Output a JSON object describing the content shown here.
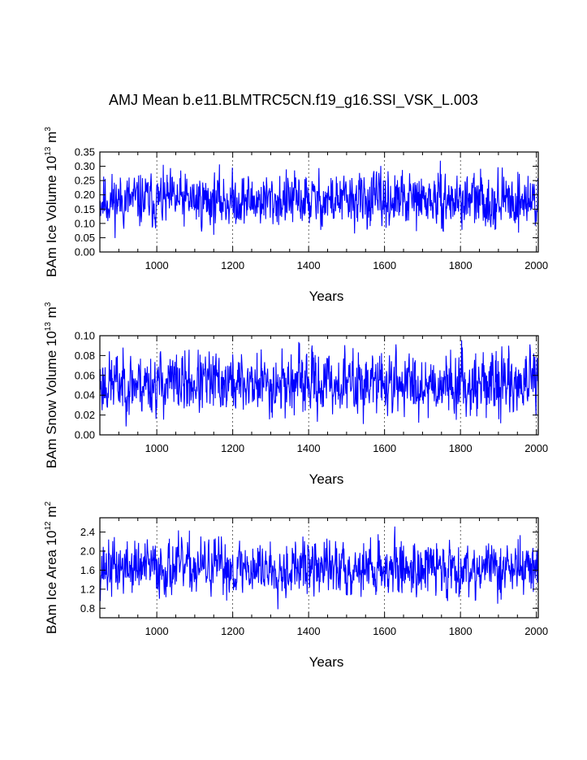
{
  "title": "AMJ Mean b.e11.BLMTRC5CN.f19_g16.SSI_VSK_L.003",
  "chart_data": [
    {
      "type": "line",
      "name": "ice-volume",
      "ylabel": {
        "main": "BAm Ice Volume 10",
        "exp": "13",
        "unit": " m",
        "unit_exp": "3"
      },
      "xlabel": "Years",
      "xlim": [
        850,
        2005
      ],
      "ylim": [
        0.0,
        0.35
      ],
      "xticks": [
        1000,
        1200,
        1400,
        1600,
        1800,
        2000
      ],
      "xtick_labels": [
        "1000",
        "1200",
        "1400",
        "1600",
        "1800",
        "2000"
      ],
      "yticks": [
        0.0,
        0.05,
        0.1,
        0.15,
        0.2,
        0.25,
        0.3,
        0.35
      ],
      "ytick_labels": [
        "0.00",
        "0.05",
        "0.10",
        "0.15",
        "0.20",
        "0.25",
        "0.30",
        "0.35"
      ],
      "mean": 0.18,
      "amplitude": 0.045,
      "seed": 11,
      "color": "#0000ff"
    },
    {
      "type": "line",
      "name": "snow-volume",
      "ylabel": {
        "main": "BAm Snow Volume 10",
        "exp": "13",
        "unit": " m",
        "unit_exp": "3"
      },
      "xlabel": "Years",
      "xlim": [
        850,
        2005
      ],
      "ylim": [
        0.0,
        0.1
      ],
      "xticks": [
        1000,
        1200,
        1400,
        1600,
        1800,
        2000
      ],
      "xtick_labels": [
        "1000",
        "1200",
        "1400",
        "1600",
        "1800",
        "2000"
      ],
      "yticks": [
        0.0,
        0.02,
        0.04,
        0.06,
        0.08,
        0.1
      ],
      "ytick_labels": [
        "0.00",
        "0.02",
        "0.04",
        "0.06",
        "0.08",
        "0.10"
      ],
      "mean": 0.052,
      "amplitude": 0.015,
      "seed": 23,
      "color": "#0000ff"
    },
    {
      "type": "line",
      "name": "ice-area",
      "ylabel": {
        "main": "BAm Ice Area 10",
        "exp": "12",
        "unit": " m",
        "unit_exp": "2"
      },
      "xlabel": "Years",
      "xlim": [
        850,
        2005
      ],
      "ylim": [
        0.6,
        2.7
      ],
      "xticks": [
        1000,
        1200,
        1400,
        1600,
        1800,
        2000
      ],
      "xtick_labels": [
        "1000",
        "1200",
        "1400",
        "1600",
        "1800",
        "2000"
      ],
      "yticks": [
        0.8,
        1.2,
        1.6,
        2.0,
        2.4
      ],
      "ytick_labels": [
        "0.8",
        "1.2",
        "1.6",
        "2.0",
        "2.4"
      ],
      "mean": 1.65,
      "amplitude": 0.28,
      "seed": 37,
      "color": "#0000ff"
    }
  ]
}
